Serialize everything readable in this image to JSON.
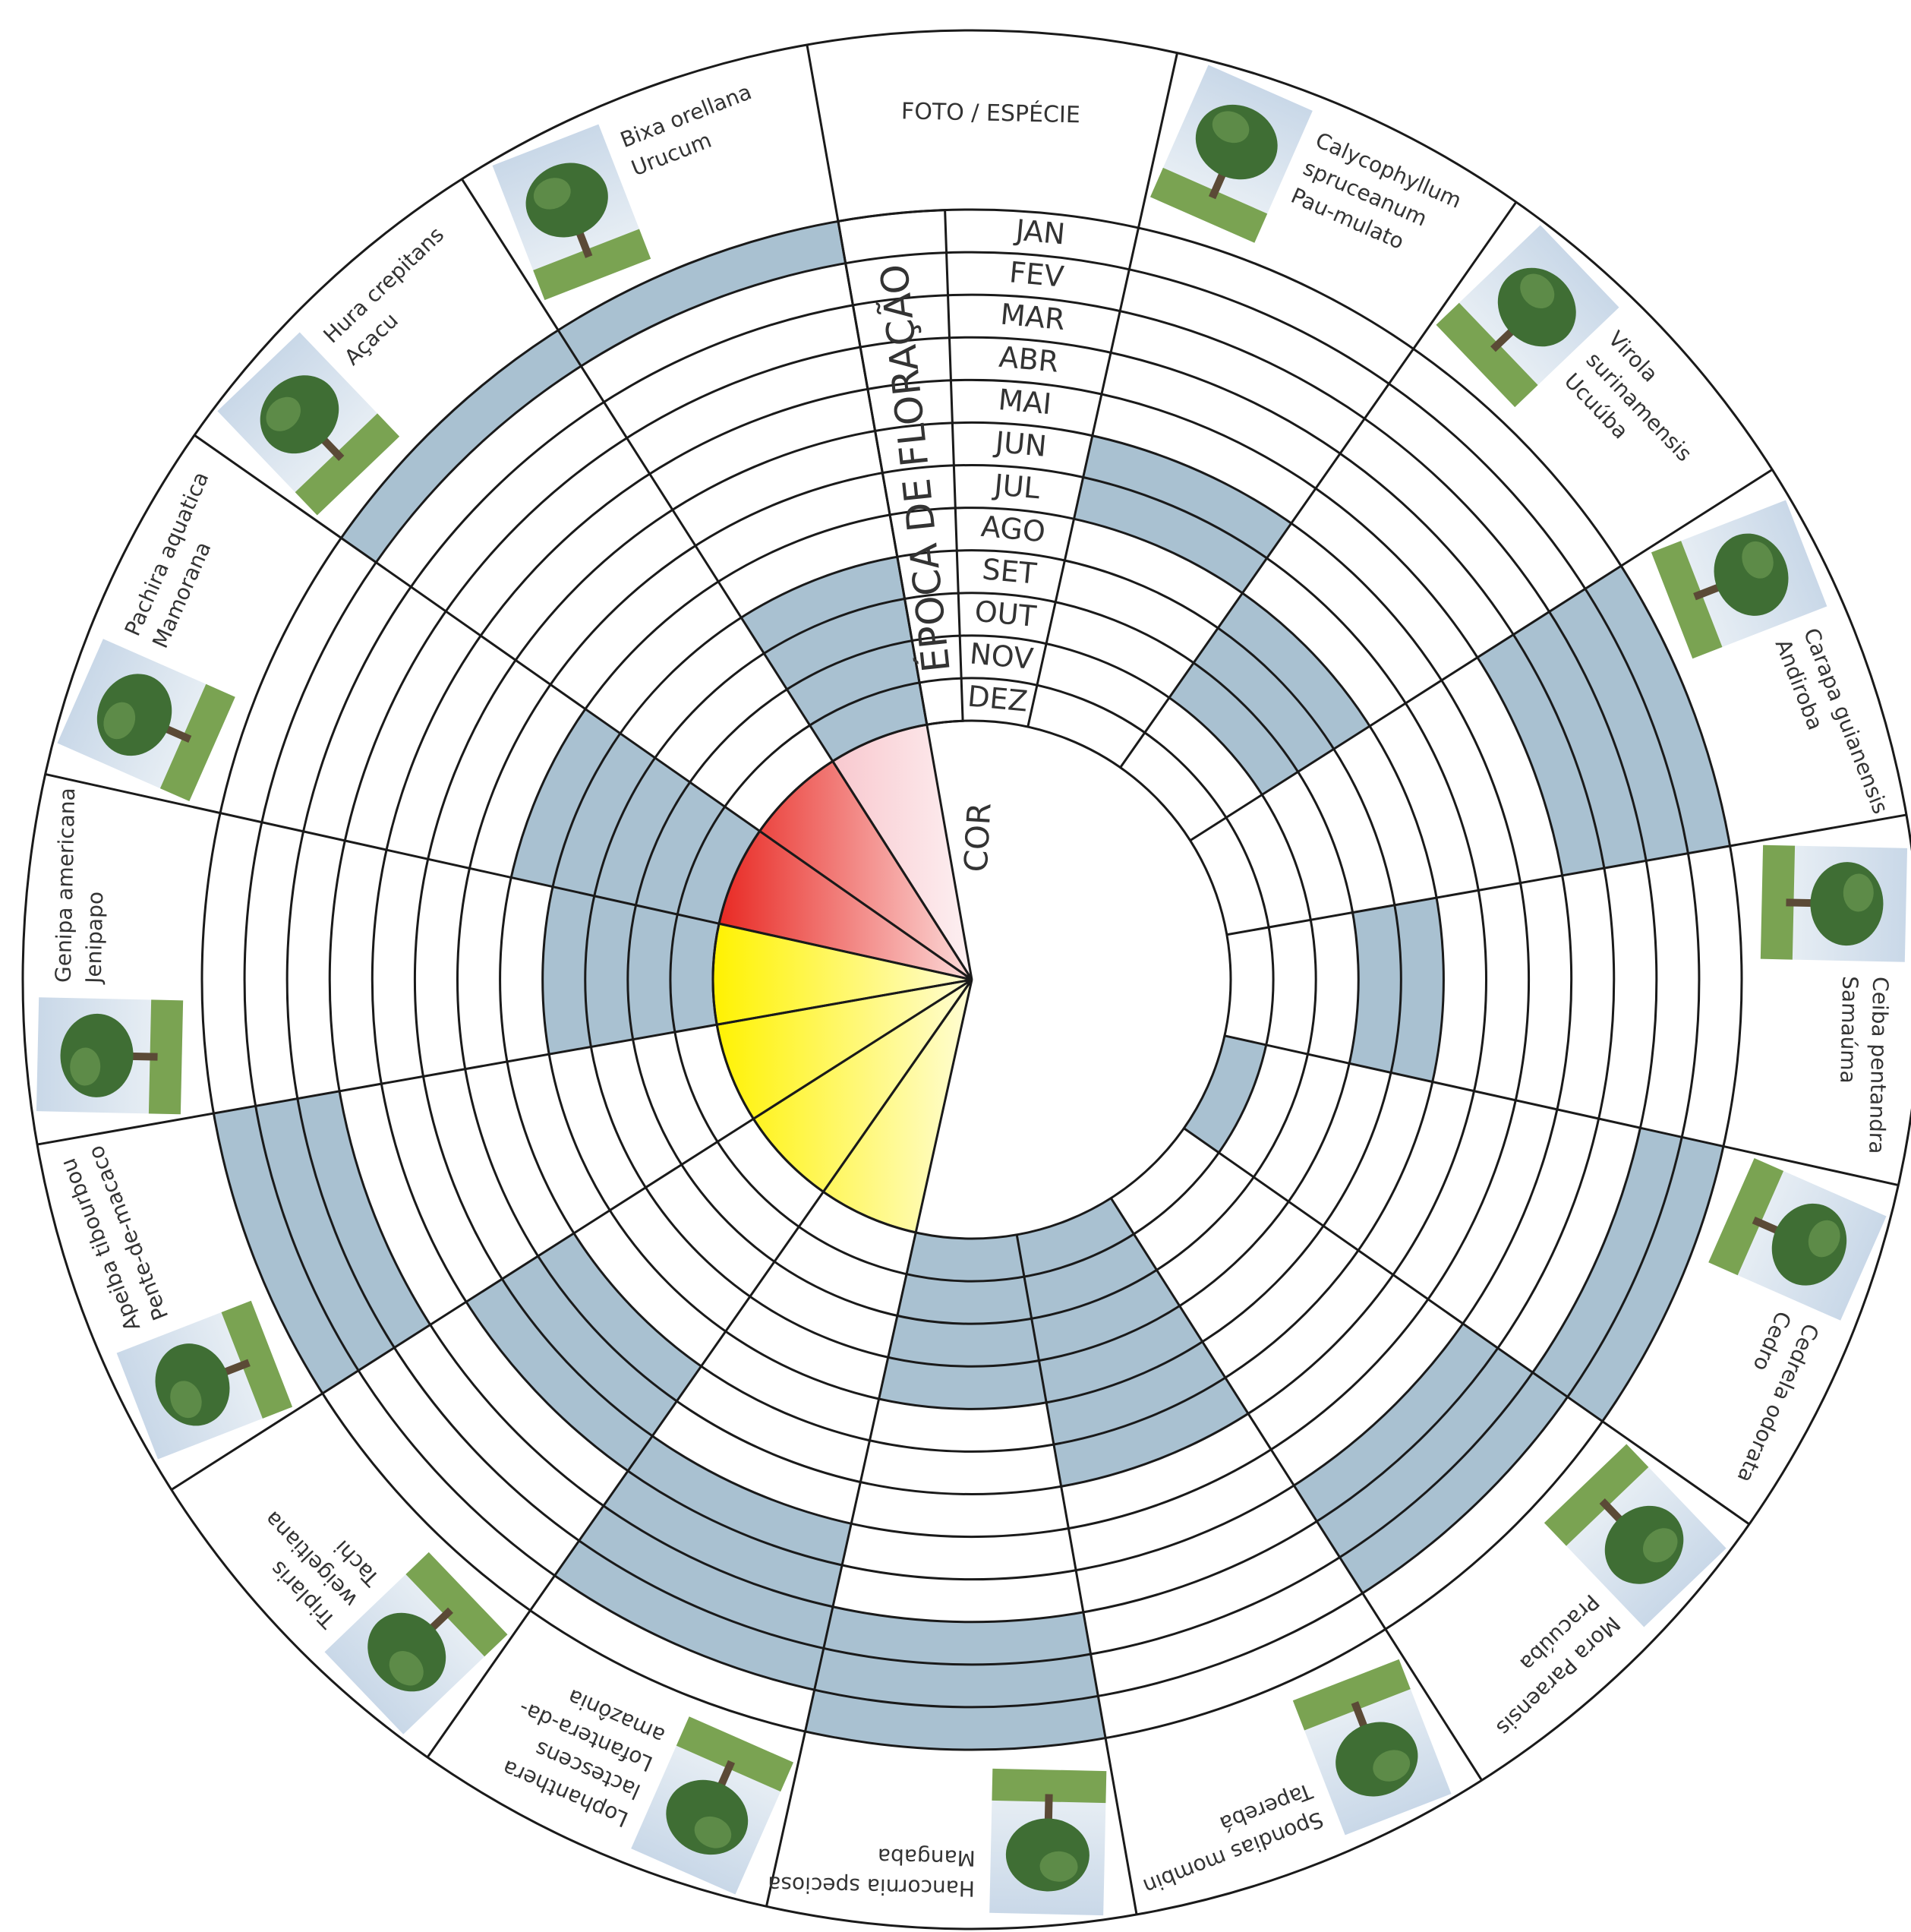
{
  "header": {
    "photo_species": "FOTO / ESPÉCIE",
    "flowering_season": "ÉPOCA DE FLORAÇÃO",
    "color": "COR"
  },
  "months": [
    "JAN",
    "FEV",
    "MAR",
    "ABR",
    "MAI",
    "JUN",
    "JUL",
    "AGO",
    "SET",
    "OUT",
    "NOV",
    "DEZ"
  ],
  "bloom_color": "#a9c1d1",
  "species": [
    {
      "lines": [
        "Calycophyllum",
        "spruceanum",
        "Pau-mulato"
      ],
      "color": "#ffffff",
      "bloom": [
        false,
        false,
        false,
        false,
        false,
        true,
        true,
        false,
        false,
        false,
        false,
        false
      ]
    },
    {
      "lines": [
        "Virola",
        "surinamensis",
        "Ucuúba"
      ],
      "color": "#ffffff",
      "bloom": [
        false,
        false,
        false,
        false,
        false,
        false,
        false,
        true,
        true,
        true,
        false,
        false
      ]
    },
    {
      "lines": [
        "Carapa guianensis",
        "Andiroba"
      ],
      "color": "#ffffff",
      "bloom": [
        true,
        true,
        true,
        true,
        false,
        false,
        false,
        false,
        false,
        false,
        false,
        false
      ]
    },
    {
      "lines": [
        "Ceiba pentandra",
        "Samaúma"
      ],
      "color": "#ffffff",
      "bloom": [
        false,
        false,
        false,
        false,
        false,
        false,
        false,
        true,
        true,
        false,
        false,
        false
      ]
    },
    {
      "lines": [
        "Cedrela odorata",
        "Cedro"
      ],
      "color": "#ffffff",
      "bloom": [
        true,
        true,
        false,
        false,
        false,
        false,
        false,
        false,
        false,
        false,
        false,
        true
      ]
    },
    {
      "lines": [
        "Mora Paraensis",
        "Pracuúba"
      ],
      "color": "#ffffff",
      "bloom": [
        false,
        true,
        true,
        true,
        false,
        false,
        false,
        false,
        false,
        false,
        false,
        false
      ]
    },
    {
      "lines": [
        "Spondias mombin",
        "Taperebá"
      ],
      "color": "#ffffff",
      "bloom": [
        false,
        false,
        false,
        false,
        false,
        false,
        true,
        true,
        true,
        true,
        true,
        true
      ]
    },
    {
      "lines": [
        "Hancornia speciosa",
        "Mangaba"
      ],
      "color": "#ffffff",
      "bloom": [
        true,
        true,
        true,
        false,
        false,
        false,
        false,
        false,
        true,
        true,
        true,
        true
      ]
    },
    {
      "lines": [
        "Lophanthera",
        "lactescens",
        "Lofantera-da-",
        "amazônia"
      ],
      "color": "#fff200",
      "bloom": [
        false,
        true,
        true,
        true,
        true,
        false,
        false,
        false,
        false,
        false,
        false,
        false
      ]
    },
    {
      "lines": [
        "Triplaris",
        "weigeltiana",
        "Tachi"
      ],
      "color": "#fff200",
      "bloom": [
        false,
        false,
        false,
        false,
        true,
        true,
        true,
        false,
        false,
        false,
        false,
        false
      ]
    },
    {
      "lines": [
        "Apeiba tibourbou",
        "Pente-de-macaco"
      ],
      "color": "#fff200",
      "bloom": [
        true,
        true,
        true,
        false,
        false,
        false,
        false,
        false,
        false,
        false,
        false,
        false
      ]
    },
    {
      "lines": [
        "Genipa americana",
        "Jenipapo"
      ],
      "color": "#fff200",
      "bloom": [
        false,
        false,
        false,
        false,
        false,
        false,
        false,
        false,
        true,
        true,
        true,
        true
      ]
    },
    {
      "lines": [
        "Pachira aquatica",
        "Mamorana"
      ],
      "color": "#e8251f",
      "bloom": [
        false,
        false,
        false,
        false,
        false,
        false,
        false,
        true,
        true,
        true,
        true,
        true
      ]
    },
    {
      "lines": [
        "Hura crepitans",
        "Açacu"
      ],
      "color": "#e8251f",
      "bloom": [
        true,
        false,
        false,
        false,
        false,
        false,
        false,
        false,
        false,
        false,
        false,
        false
      ]
    },
    {
      "lines": [
        "Bixa orellana",
        "Urucum"
      ],
      "color": "#f4a6b0",
      "bloom": [
        true,
        false,
        false,
        false,
        false,
        false,
        false,
        false,
        true,
        true,
        true,
        true
      ]
    }
  ]
}
